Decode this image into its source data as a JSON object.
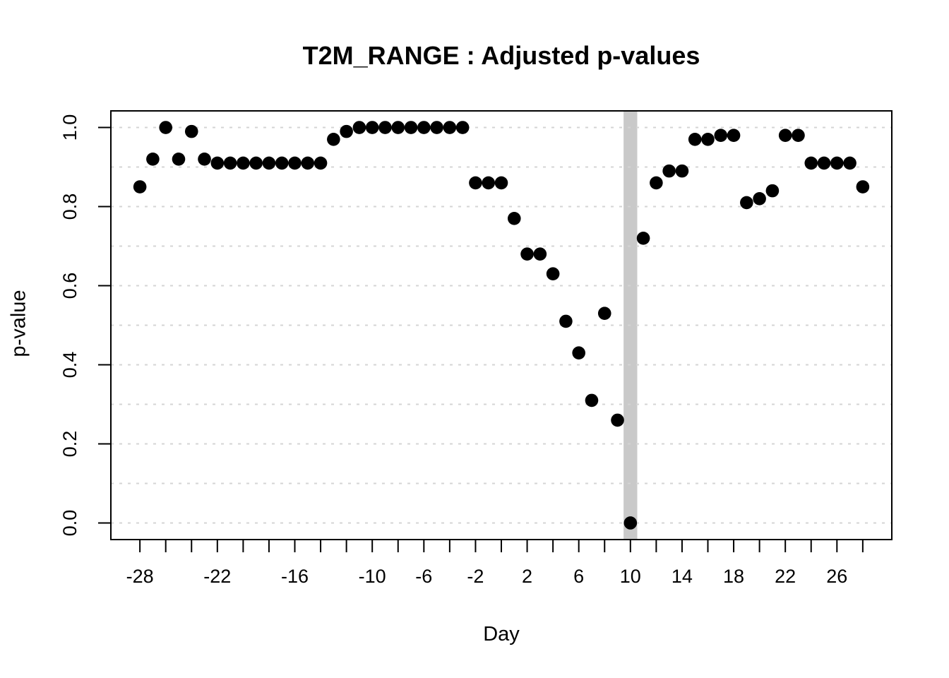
{
  "chart_data": {
    "type": "scatter",
    "title": "T2M_RANGE : Adjusted p-values",
    "xlabel": "Day",
    "ylabel": "p-value",
    "x": [
      -28,
      -27,
      -26,
      -25,
      -24,
      -23,
      -22,
      -21,
      -20,
      -19,
      -18,
      -17,
      -16,
      -15,
      -14,
      -13,
      -12,
      -11,
      -10,
      -9,
      -8,
      -7,
      -6,
      -5,
      -4,
      -3,
      -2,
      -1,
      0,
      1,
      2,
      3,
      4,
      5,
      6,
      7,
      8,
      9,
      10,
      11,
      12,
      13,
      14,
      15,
      16,
      17,
      18,
      19,
      20,
      21,
      22,
      23,
      24,
      25,
      26,
      27,
      28
    ],
    "y": [
      0.85,
      0.92,
      1.0,
      0.92,
      0.99,
      0.92,
      0.91,
      0.91,
      0.91,
      0.91,
      0.91,
      0.91,
      0.91,
      0.91,
      0.91,
      0.97,
      0.99,
      1.0,
      1.0,
      1.0,
      1.0,
      1.0,
      1.0,
      1.0,
      1.0,
      1.0,
      0.86,
      0.86,
      0.86,
      0.77,
      0.68,
      0.68,
      0.63,
      0.51,
      0.43,
      0.31,
      0.53,
      0.26,
      0.0,
      0.72,
      0.86,
      0.89,
      0.89,
      0.97,
      0.97,
      0.98,
      0.98,
      0.81,
      0.82,
      0.84,
      0.98,
      0.98,
      0.91,
      0.91,
      0.91,
      0.91,
      0.85
    ],
    "xlim": [
      -30.25,
      30.25
    ],
    "ylim": [
      -0.042,
      1.042
    ],
    "x_ticks": [
      -28,
      -26,
      -24,
      -22,
      -20,
      -18,
      -16,
      -14,
      -12,
      -10,
      -8,
      -6,
      -4,
      -2,
      0,
      2,
      4,
      6,
      8,
      10,
      12,
      14,
      16,
      18,
      20,
      22,
      24,
      26,
      28
    ],
    "x_tick_label_positions": [
      -28,
      -22,
      -16,
      -10,
      -6,
      -2,
      2,
      6,
      10,
      14,
      18,
      22,
      26
    ],
    "x_tick_labels": [
      "-28",
      "-22",
      "-16",
      "-10",
      "-6",
      "-2",
      "2",
      "6",
      "10",
      "14",
      "18",
      "22",
      "26"
    ],
    "y_ticks": [
      0.0,
      0.2,
      0.4,
      0.6,
      0.8,
      1.0
    ],
    "y_tick_labels": [
      "0.0",
      "0.2",
      "0.4",
      "0.6",
      "0.8",
      "1.0"
    ],
    "grid_y_values": [
      0.0,
      0.1,
      0.2,
      0.3,
      0.4,
      0.5,
      0.6,
      0.7,
      0.8,
      0.9,
      1.0
    ],
    "grid_style": "dotted",
    "legend": "none",
    "highlight_band": {
      "x_center": 10,
      "x_halfwidth": 0.53
    },
    "point_radius_px": 9.3,
    "colors": {
      "point": "#000000",
      "band": "#c9c9c9",
      "grid": "#d4d4d4",
      "axis": "#000000",
      "background": "#ffffff"
    }
  }
}
